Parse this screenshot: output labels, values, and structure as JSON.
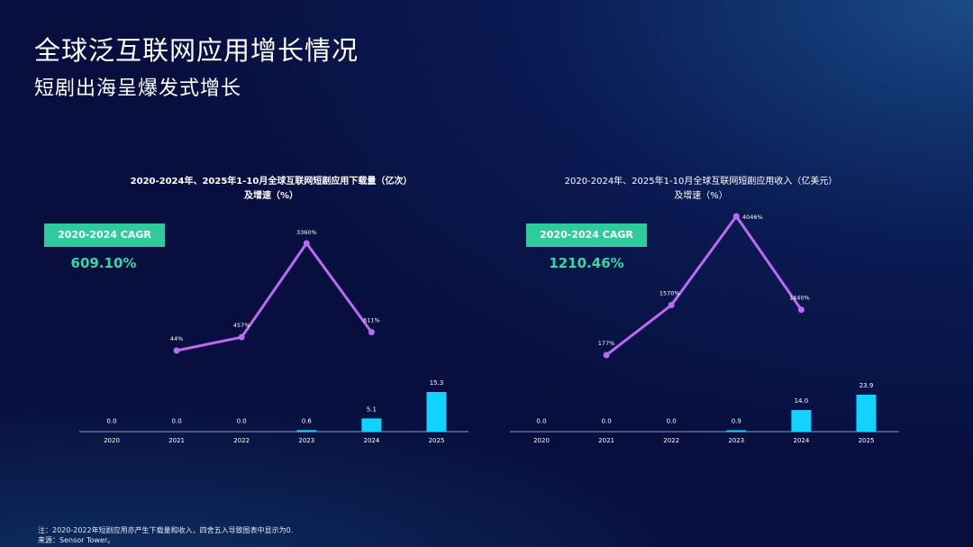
{
  "header": {
    "title": "全球泛互联网应用增长情况",
    "subtitle": "短剧出海呈爆发式增长"
  },
  "colors": {
    "bar": "#12d3ff",
    "line": "#bb6bf1",
    "badge": "#2ecb9c",
    "badge_value": "#37d6a4"
  },
  "charts": {
    "downloads": {
      "title_line1": "2020-2024年、2025年1-10月全球互联网短剧应用下载量（亿次）",
      "title_line2": "及增速（%）",
      "cagr_label": "2020-2024 CAGR",
      "cagr_value": "609.10%"
    },
    "revenue": {
      "title_line1": "2020-2024年、2025年1-10月全球互联网短剧应用收入（亿美元）",
      "title_line2": "及增速（%）",
      "cagr_label": "2020-2024 CAGR",
      "cagr_value": "1210.46%"
    }
  },
  "chart_data": [
    {
      "type": "bar",
      "title": "2020-2024年、2025年1-10月全球互联网短剧应用下载量（亿次）及增速（%）",
      "categories": [
        "2020",
        "2021",
        "2022",
        "2023",
        "2024",
        "2025"
      ],
      "values": [
        0.0,
        0.0,
        0.0,
        0.6,
        5.1,
        15.3
      ],
      "value_labels": [
        "0.0",
        "0.0",
        "0.0",
        "0.6",
        "5.1",
        "15.3"
      ],
      "overlay_line": {
        "categories": [
          "2021",
          "2022",
          "2023",
          "2024"
        ],
        "values": [
          44,
          457,
          3360,
          611
        ],
        "labels": [
          "44%",
          "457%",
          "3360%",
          "611%"
        ]
      }
    },
    {
      "type": "bar",
      "title": "2020-2024年、2025年1-10月全球互联网短剧应用收入（亿美元）及增速（%）",
      "categories": [
        "2020",
        "2021",
        "2022",
        "2023",
        "2024",
        "2025"
      ],
      "values": [
        0.0,
        0.0,
        0.0,
        0.9,
        14.0,
        23.9
      ],
      "value_labels": [
        "0.0",
        "0.0",
        "0.0",
        "0.9",
        "14.0",
        "23.9"
      ],
      "overlay_line": {
        "categories": [
          "2021",
          "2022",
          "2023",
          "2024"
        ],
        "values": [
          177,
          1570,
          4046,
          1440
        ],
        "labels": [
          "177%",
          "1570%",
          "4046%",
          "1440%"
        ]
      }
    }
  ],
  "footer": {
    "note": "注：2020-2022年短剧应用亦产生下载量和收入，四舍五入导致图表中显示为0.",
    "source": "来源：Sensor Tower。"
  }
}
